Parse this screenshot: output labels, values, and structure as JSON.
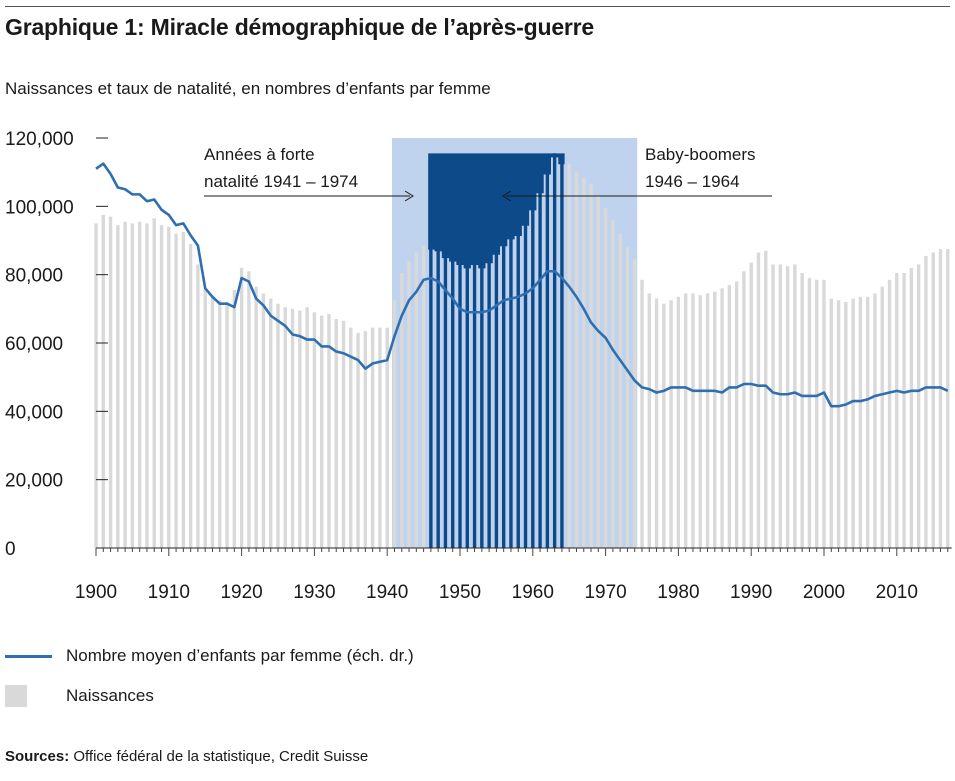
{
  "title": "Graphique 1: Miracle démographique de l’après-guerre",
  "subtitle": "Naissances et taux de natalité, en nombres d’enfants par femme",
  "legend": {
    "line_label": "Nombre moyen d’enfants par femme (éch. dr.)",
    "bar_label": "Naissances"
  },
  "source": {
    "prefix": "Sources:",
    "text": " Office fédéral de la statistique, Credit Suisse"
  },
  "annotations": {
    "forte_natalite_line1": "Années à forte",
    "forte_natalite_line2": "natalité 1941 – 1974",
    "baby_boomers_line1": "Baby-boomers",
    "baby_boomers_line2": "1946 – 1964"
  },
  "colors": {
    "bars_default": "#d9d9d9",
    "bars_high_natality": "#d9d9d9",
    "shade_high_natality": "#bfd3ee",
    "baby_boom_block": "#0d4a8a",
    "line": "#2f6fb0"
  },
  "chart_data": {
    "type": "bar",
    "title": "Graphique 1: Miracle démographique de l’après-guerre",
    "ylabel": "",
    "xlabel": "",
    "ylim": [
      0,
      120000
    ],
    "yticks": [
      0,
      20000,
      40000,
      60000,
      80000,
      100000,
      120000
    ],
    "ytick_labels": [
      "0",
      "20,000",
      "40,000",
      "60,000",
      "80,000",
      "100,000",
      "120,000"
    ],
    "xticks": [
      1900,
      1910,
      1920,
      1930,
      1940,
      1950,
      1960,
      1970,
      1980,
      1990,
      2000,
      2010
    ],
    "xlim": [
      1900,
      2017
    ],
    "grid": false,
    "legend_position": "bottom-left",
    "highlight_ranges": [
      {
        "label": "Années à forte natalité",
        "start": 1941,
        "end": 1974
      },
      {
        "label": "Baby-boomers",
        "start": 1946,
        "end": 1964,
        "top_value": 115500
      }
    ],
    "series": [
      {
        "name": "Naissances",
        "type": "bar",
        "x": [
          1900,
          1901,
          1902,
          1903,
          1904,
          1905,
          1906,
          1907,
          1908,
          1909,
          1910,
          1911,
          1912,
          1913,
          1914,
          1915,
          1916,
          1917,
          1918,
          1919,
          1920,
          1921,
          1922,
          1923,
          1924,
          1925,
          1926,
          1927,
          1928,
          1929,
          1930,
          1931,
          1932,
          1933,
          1934,
          1935,
          1936,
          1937,
          1938,
          1939,
          1940,
          1941,
          1942,
          1943,
          1944,
          1945,
          1946,
          1947,
          1948,
          1949,
          1950,
          1951,
          1952,
          1953,
          1954,
          1955,
          1956,
          1957,
          1958,
          1959,
          1960,
          1961,
          1962,
          1963,
          1964,
          1965,
          1966,
          1967,
          1968,
          1969,
          1970,
          1971,
          1972,
          1973,
          1974,
          1975,
          1976,
          1977,
          1978,
          1979,
          1980,
          1981,
          1982,
          1983,
          1984,
          1985,
          1986,
          1987,
          1988,
          1989,
          1990,
          1991,
          1992,
          1993,
          1994,
          1995,
          1996,
          1997,
          1998,
          1999,
          2000,
          2001,
          2002,
          2003,
          2004,
          2005,
          2006,
          2007,
          2008,
          2009,
          2010,
          2011,
          2012,
          2013,
          2014,
          2015,
          2016,
          2017
        ],
        "values": [
          95000,
          97500,
          97000,
          94500,
          95500,
          95000,
          95500,
          95000,
          96500,
          94500,
          94000,
          92000,
          92500,
          89000,
          83000,
          76000,
          73500,
          72500,
          72000,
          75500,
          82000,
          81000,
          76500,
          74500,
          73000,
          71500,
          70500,
          70000,
          69500,
          70500,
          69000,
          68000,
          68500,
          67000,
          66500,
          64500,
          63000,
          63500,
          64500,
          64500,
          64500,
          72500,
          80500,
          84000,
          86500,
          88500,
          88500,
          88000,
          86000,
          85000,
          84000,
          83000,
          84000,
          83000,
          84500,
          87000,
          89500,
          91500,
          92500,
          95500,
          100000,
          105000,
          110500,
          115500,
          113500,
          112500,
          110000,
          108500,
          106500,
          103000,
          99500,
          96000,
          92000,
          88000,
          84500,
          78500,
          74500,
          73000,
          71500,
          72500,
          73500,
          74500,
          74500,
          74000,
          74500,
          75000,
          76000,
          77000,
          78000,
          81000,
          83500,
          86500,
          87000,
          83000,
          83000,
          82500,
          83000,
          80500,
          79000,
          78500,
          78500,
          73000,
          72500,
          72000,
          73000,
          73500,
          73500,
          74500,
          76500,
          78500,
          80500,
          80500,
          82000,
          83000,
          85500,
          86500,
          87500,
          87500
        ]
      },
      {
        "name": "Nombre moyen d’enfants par femme (éch. dr.)",
        "type": "line",
        "x": [
          1900,
          1901,
          1902,
          1903,
          1904,
          1905,
          1906,
          1907,
          1908,
          1909,
          1910,
          1911,
          1912,
          1913,
          1914,
          1915,
          1916,
          1917,
          1918,
          1919,
          1920,
          1921,
          1922,
          1923,
          1924,
          1925,
          1926,
          1927,
          1928,
          1929,
          1930,
          1931,
          1932,
          1933,
          1934,
          1935,
          1936,
          1937,
          1938,
          1939,
          1940,
          1941,
          1942,
          1943,
          1944,
          1945,
          1946,
          1947,
          1948,
          1949,
          1950,
          1951,
          1952,
          1953,
          1954,
          1955,
          1956,
          1957,
          1958,
          1959,
          1960,
          1961,
          1962,
          1963,
          1964,
          1965,
          1966,
          1967,
          1968,
          1969,
          1970,
          1971,
          1972,
          1973,
          1974,
          1975,
          1976,
          1977,
          1978,
          1979,
          1980,
          1981,
          1982,
          1983,
          1984,
          1985,
          1986,
          1987,
          1988,
          1989,
          1990,
          1991,
          1992,
          1993,
          1994,
          1995,
          1996,
          1997,
          1998,
          1999,
          2000,
          2001,
          2002,
          2003,
          2004,
          2005,
          2006,
          2007,
          2008,
          2009,
          2010,
          2011,
          2012,
          2013,
          2014,
          2015,
          2016,
          2017
        ],
        "values": [
          111000,
          112500,
          109500,
          105500,
          105000,
          103500,
          103500,
          101500,
          102000,
          99000,
          97500,
          94500,
          95000,
          91500,
          88500,
          76000,
          73500,
          71500,
          71500,
          70500,
          79000,
          78000,
          73000,
          71000,
          68000,
          66500,
          65000,
          62500,
          62000,
          61000,
          61000,
          59000,
          59000,
          57500,
          57000,
          56000,
          55000,
          52500,
          54000,
          54500,
          55000,
          62000,
          68000,
          72500,
          75000,
          78500,
          79000,
          78000,
          75500,
          73000,
          70000,
          69000,
          69000,
          69000,
          69500,
          71000,
          72500,
          73000,
          73500,
          74500,
          76000,
          78500,
          81000,
          81000,
          79000,
          76500,
          73500,
          70000,
          66000,
          63500,
          61500,
          58000,
          55000,
          52000,
          49000,
          47000,
          46500,
          45500,
          46000,
          47000,
          47000,
          47000,
          46000,
          46000,
          46000,
          46000,
          45500,
          47000,
          47000,
          48000,
          48000,
          47500,
          47500,
          45500,
          45000,
          45000,
          45500,
          44500,
          44500,
          44500,
          45500,
          41500,
          41500,
          42000,
          43000,
          43000,
          43500,
          44500,
          45000,
          45500,
          46000,
          45500,
          46000,
          46000,
          47000,
          47000,
          47000,
          46000
        ]
      }
    ]
  }
}
